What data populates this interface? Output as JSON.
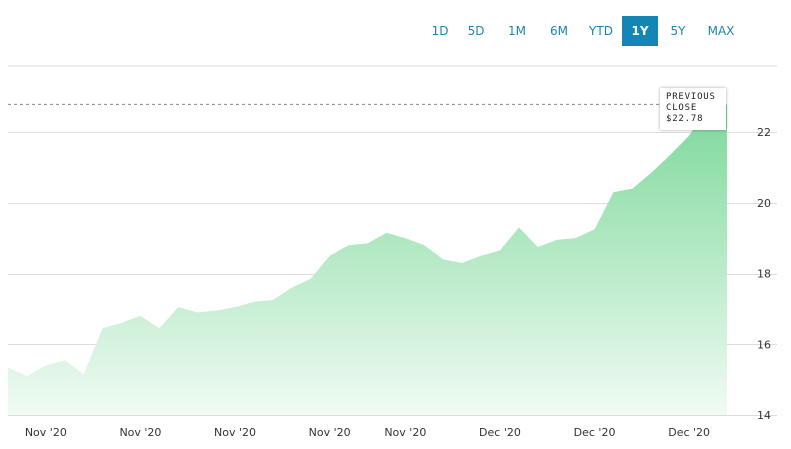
{
  "range_tabs": [
    {
      "label": "1D",
      "active": false
    },
    {
      "label": "5D",
      "active": false
    },
    {
      "label": "1M",
      "active": false
    },
    {
      "label": "6M",
      "active": false
    },
    {
      "label": "YTD",
      "active": false
    },
    {
      "label": "1Y",
      "active": true
    },
    {
      "label": "5Y",
      "active": false
    },
    {
      "label": "MAX",
      "active": false
    }
  ],
  "callout": {
    "line1": "PREVIOUS",
    "line2": "CLOSE",
    "line3": "$22.78"
  },
  "colors": {
    "accent": "#1386b4",
    "area_top": "#7dd89a",
    "area_bottom": "#f1fbf4",
    "grid": "#dddddd"
  },
  "chart_data": {
    "type": "area",
    "title": "",
    "xlabel": "",
    "ylabel": "",
    "y_ticks": [
      14,
      16,
      18,
      20,
      22
    ],
    "ylim": [
      14,
      24
    ],
    "x_tick_labels": [
      "Nov '20",
      "Nov '20",
      "Nov '20",
      "Nov '20",
      "Nov '20",
      "Dec '20",
      "Dec '20",
      "Dec '20"
    ],
    "x_tick_index": [
      2,
      7,
      12,
      17,
      21,
      26,
      31,
      36
    ],
    "previous_close": 22.78,
    "values": [
      15.35,
      15.1,
      15.4,
      15.55,
      15.15,
      16.45,
      16.6,
      16.8,
      16.45,
      17.05,
      16.9,
      16.95,
      17.05,
      17.2,
      17.25,
      17.6,
      17.85,
      18.5,
      18.8,
      18.85,
      19.15,
      19.0,
      18.8,
      18.4,
      18.3,
      18.5,
      18.65,
      19.3,
      18.75,
      18.95,
      19.0,
      19.25,
      20.3,
      20.4,
      20.85,
      21.35,
      21.9,
      22.78,
      22.78
    ]
  }
}
